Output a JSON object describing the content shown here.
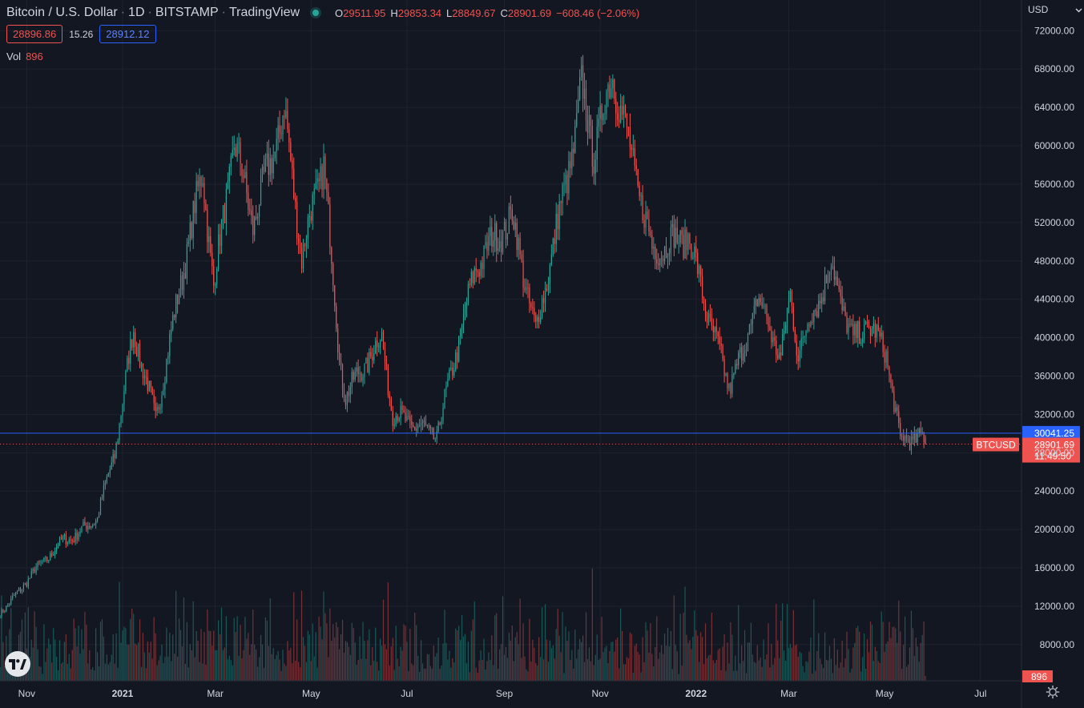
{
  "header": {
    "symbol_title": "Bitcoin / U.S. Dollar",
    "interval": "1D",
    "exchange": "BITSTAMP",
    "source": "TradingView",
    "status_icon": "market-open-dot",
    "ohlc": {
      "o_label": "O",
      "o": "29511.95",
      "h_label": "H",
      "h": "29853.34",
      "l_label": "L",
      "l": "28849.67",
      "c_label": "C",
      "c": "28901.69",
      "change": "−608.46 (−2.06%)"
    },
    "sell_price": "28896.86",
    "spread": "15.26",
    "buy_price": "28912.12",
    "vol_label": "Vol",
    "vol_value": "896"
  },
  "currency": {
    "label": "USD",
    "icon": "chevron-down-icon"
  },
  "price_scale": {
    "ticks": [
      "72000.00",
      "68000.00",
      "64000.00",
      "60000.00",
      "56000.00",
      "52000.00",
      "48000.00",
      "44000.00",
      "40000.00",
      "36000.00",
      "32000.00",
      "28000.00",
      "24000.00",
      "20000.00",
      "16000.00",
      "12000.00",
      "8000.00"
    ]
  },
  "time_scale": {
    "ticks": [
      {
        "label": "Nov",
        "bold": false
      },
      {
        "label": "2021",
        "bold": true
      },
      {
        "label": "Mar",
        "bold": false
      },
      {
        "label": "May",
        "bold": false
      },
      {
        "label": "Jul",
        "bold": false
      },
      {
        "label": "Sep",
        "bold": false
      },
      {
        "label": "Nov",
        "bold": false
      },
      {
        "label": "2022",
        "bold": true
      },
      {
        "label": "Mar",
        "bold": false
      },
      {
        "label": "May",
        "bold": false
      },
      {
        "label": "Jul",
        "bold": false
      }
    ]
  },
  "labels": {
    "horizontal_line_price": "30041.25",
    "symbol_tag": "BTCUSD",
    "last_price": "28901.69",
    "countdown": "11:49:50",
    "last_volume": "896"
  },
  "colors": {
    "background": "#131722",
    "up": "#26a69a",
    "down": "#ef5350",
    "line_blue": "#2962ff",
    "grid": "#1e222d"
  },
  "chart_data": {
    "type": "candlestick",
    "interval": "1D",
    "keypoints": [
      [
        "2020-10-15",
        11400
      ],
      [
        "2020-10-21",
        12300
      ],
      [
        "2020-11-05",
        15500
      ],
      [
        "2020-11-25",
        19000
      ],
      [
        "2020-12-02",
        19300
      ],
      [
        "2020-12-16",
        21300
      ],
      [
        "2020-12-27",
        28000
      ],
      [
        "2021-01-08",
        40800
      ],
      [
        "2021-01-22",
        31500
      ],
      [
        "2021-02-09",
        47500
      ],
      [
        "2021-02-21",
        57300
      ],
      [
        "2021-02-28",
        45300
      ],
      [
        "2021-03-13",
        60500
      ],
      [
        "2021-03-25",
        52000
      ],
      [
        "2021-04-14",
        63500
      ],
      [
        "2021-04-25",
        48500
      ],
      [
        "2021-05-09",
        58600
      ],
      [
        "2021-05-19",
        37500
      ],
      [
        "2021-05-23",
        34000
      ],
      [
        "2021-06-15",
        40000
      ],
      [
        "2021-06-22",
        32000
      ],
      [
        "2021-07-20",
        29800
      ],
      [
        "2021-08-14",
        47500
      ],
      [
        "2021-08-22",
        49500
      ],
      [
        "2021-09-06",
        52500
      ],
      [
        "2021-09-21",
        40500
      ],
      [
        "2021-10-16",
        61000
      ],
      [
        "2021-10-20",
        66000
      ],
      [
        "2021-10-28",
        59500
      ],
      [
        "2021-11-09",
        67600
      ],
      [
        "2021-11-27",
        54500
      ],
      [
        "2021-12-04",
        49000
      ],
      [
        "2021-12-27",
        50700
      ],
      [
        "2022-01-10",
        41500
      ],
      [
        "2022-01-22",
        35000
      ],
      [
        "2022-01-31",
        38500
      ],
      [
        "2022-02-09",
        44200
      ],
      [
        "2022-02-24",
        38000
      ],
      [
        "2022-03-02",
        44200
      ],
      [
        "2022-03-07",
        38500
      ],
      [
        "2022-03-28",
        47500
      ],
      [
        "2022-04-11",
        39500
      ],
      [
        "2022-04-20",
        41500
      ],
      [
        "2022-05-02",
        38500
      ],
      [
        "2022-05-11",
        29000
      ],
      [
        "2022-05-13",
        29500
      ],
      [
        "2022-05-25",
        29500
      ],
      [
        "2022-05-27",
        28901.69
      ]
    ],
    "last_candle": {
      "o": 29511.95,
      "h": 29853.34,
      "l": 28849.67,
      "c": 28901.69
    },
    "x_range": [
      "2020-10-15",
      "2022-07-20"
    ],
    "y_range": [
      5400,
      75200
    ],
    "horizontal_line": 30041.25,
    "last_price": 28901.69,
    "volume_last": 896,
    "grid": true
  }
}
